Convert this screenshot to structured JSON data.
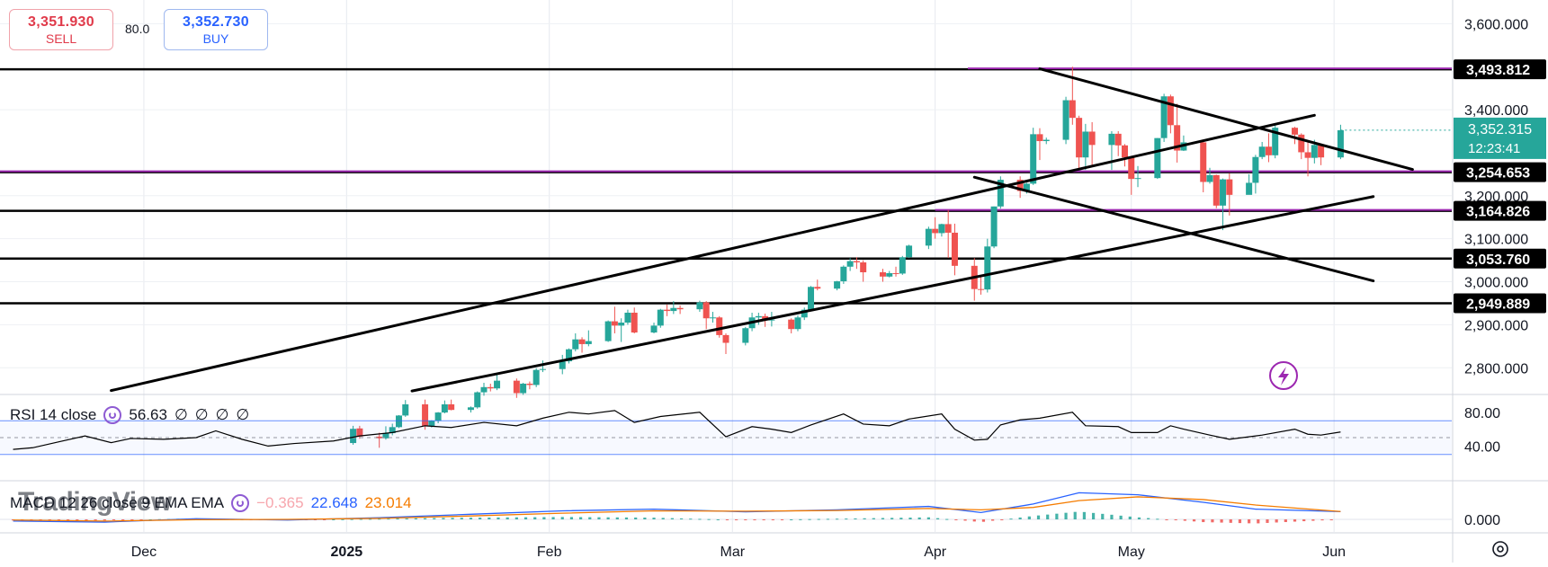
{
  "trade_panel": {
    "sell_price": "3,351.930",
    "sell_label": "SELL",
    "spread": "80.0",
    "buy_price": "3,352.730",
    "buy_label": "BUY"
  },
  "watermark": "TradingView",
  "colors": {
    "up": "#26a69a",
    "down": "#ef5350",
    "hline": "#000000",
    "purple_line": "#9c27b0",
    "rsi_line": "#000000",
    "rsi_band": "#2962ff",
    "macd_line": "#2962ff",
    "signal_line": "#f57c00",
    "price_badge": "#26a69a"
  },
  "price_axis_labels": [
    "3,600.000",
    "3,400.000",
    "3,200.000",
    "3,100.000",
    "3,000.000",
    "2,900.000",
    "2,800.000"
  ],
  "level_labels": [
    "3,493.812",
    "3,254.653",
    "3,164.826",
    "3,053.760",
    "2,949.889"
  ],
  "current_price": {
    "value": "3,352.315",
    "countdown": "12:23:41"
  },
  "rsi": {
    "name": "RSI 14 close",
    "value": "56.63",
    "extras": [
      "∅",
      "∅",
      "∅",
      "∅"
    ],
    "axis_labels": [
      "80.00",
      "40.00"
    ]
  },
  "macd": {
    "name": "MACD 12 26 close 9 EMA EMA",
    "histogram": "−0.365",
    "macd": "22.648",
    "signal": "23.014",
    "axis_labels": [
      "0.000"
    ]
  },
  "time_axis_labels": [
    "Dec",
    "2025",
    "Feb",
    "Mar",
    "Apr",
    "May",
    "Jun"
  ],
  "chart_data": {
    "type": "candlestick",
    "title": "",
    "price_range": [
      2740,
      3655
    ],
    "time_range": [
      "2024-11-09",
      "2025-06-19"
    ],
    "grid": true,
    "horizontal_levels": [
      3493.812,
      3254.653,
      3164.826,
      3053.76,
      2949.889
    ],
    "purple_levels": [
      {
        "y": 3493.812,
        "from": "2025-04-06"
      },
      {
        "y": 3254.653,
        "from": "2024-11-09"
      },
      {
        "y": 3164.826,
        "from": "2025-04-01"
      }
    ],
    "trendlines": [
      {
        "from": [
          "2024-11-26",
          2747
        ],
        "to": [
          "2025-05-29",
          3387
        ]
      },
      {
        "from": [
          "2025-01-11",
          2746
        ],
        "to": [
          "2025-06-07",
          3198
        ]
      },
      {
        "from": [
          "2025-04-17",
          3495
        ],
        "to": [
          "2025-06-13",
          3261
        ]
      },
      {
        "from": [
          "2025-04-07",
          3243
        ],
        "to": [
          "2025-06-07",
          3002
        ]
      }
    ],
    "candles": [
      [
        "2025-01-02",
        2625,
        2665,
        2621,
        2658
      ],
      [
        "2025-01-03",
        2659,
        2665,
        2635,
        2640
      ],
      [
        "2025-01-06",
        2640,
        2649,
        2614,
        2636
      ],
      [
        "2025-01-07",
        2636,
        2664,
        2633,
        2648
      ],
      [
        "2025-01-08",
        2648,
        2670,
        2643,
        2662
      ],
      [
        "2025-01-09",
        2662,
        2690,
        2660,
        2689
      ],
      [
        "2025-01-10",
        2689,
        2725,
        2686,
        2715
      ],
      [
        "2025-01-13",
        2715,
        2726,
        2656,
        2664
      ],
      [
        "2025-01-14",
        2664,
        2678,
        2661,
        2677
      ],
      [
        "2025-01-15",
        2677,
        2697,
        2671,
        2696
      ],
      [
        "2025-01-16",
        2696,
        2724,
        2694,
        2715
      ],
      [
        "2025-01-17",
        2715,
        2726,
        2701,
        2702
      ],
      [
        "2025-01-20",
        2702,
        2710,
        2696,
        2708
      ],
      [
        "2025-01-21",
        2708,
        2745,
        2705,
        2743
      ],
      [
        "2025-01-22",
        2743,
        2765,
        2735,
        2755
      ],
      [
        "2025-01-23",
        2755,
        2763,
        2745,
        2752
      ],
      [
        "2025-01-24",
        2752,
        2785,
        2748,
        2770
      ],
      [
        "2025-01-27",
        2770,
        2775,
        2730,
        2741
      ],
      [
        "2025-01-28",
        2741,
        2765,
        2737,
        2763
      ],
      [
        "2025-01-29",
        2763,
        2768,
        2750,
        2760
      ],
      [
        "2025-01-30",
        2760,
        2799,
        2755,
        2795
      ],
      [
        "2025-01-31",
        2795,
        2817,
        2790,
        2797
      ],
      [
        "2025-02-03",
        2797,
        2830,
        2785,
        2815
      ],
      [
        "2025-02-04",
        2815,
        2845,
        2810,
        2843
      ],
      [
        "2025-02-05",
        2843,
        2880,
        2838,
        2866
      ],
      [
        "2025-02-06",
        2866,
        2871,
        2835,
        2855
      ],
      [
        "2025-02-07",
        2855,
        2887,
        2850,
        2862
      ],
      [
        "2025-02-10",
        2862,
        2910,
        2860,
        2908
      ],
      [
        "2025-02-11",
        2908,
        2942,
        2880,
        2898
      ],
      [
        "2025-02-12",
        2898,
        2915,
        2860,
        2905
      ],
      [
        "2025-02-13",
        2905,
        2935,
        2900,
        2928
      ],
      [
        "2025-02-14",
        2928,
        2940,
        2880,
        2882
      ],
      [
        "2025-02-17",
        2882,
        2905,
        2880,
        2898
      ],
      [
        "2025-02-18",
        2898,
        2937,
        2893,
        2935
      ],
      [
        "2025-02-19",
        2935,
        2947,
        2920,
        2932
      ],
      [
        "2025-02-20",
        2932,
        2955,
        2925,
        2939
      ],
      [
        "2025-02-21",
        2939,
        2945,
        2925,
        2936
      ],
      [
        "2025-02-24",
        2936,
        2956,
        2930,
        2952
      ],
      [
        "2025-02-25",
        2952,
        2955,
        2890,
        2915
      ],
      [
        "2025-02-26",
        2915,
        2930,
        2905,
        2917
      ],
      [
        "2025-02-27",
        2917,
        2920,
        2870,
        2876
      ],
      [
        "2025-02-28",
        2876,
        2880,
        2832,
        2858
      ],
      [
        "2025-03-03",
        2858,
        2895,
        2852,
        2892
      ],
      [
        "2025-03-04",
        2892,
        2928,
        2885,
        2917
      ],
      [
        "2025-03-05",
        2917,
        2928,
        2900,
        2920
      ],
      [
        "2025-03-06",
        2920,
        2926,
        2895,
        2910
      ],
      [
        "2025-03-07",
        2910,
        2930,
        2896,
        2912
      ],
      [
        "2025-03-10",
        2912,
        2915,
        2880,
        2890
      ],
      [
        "2025-03-11",
        2890,
        2922,
        2885,
        2917
      ],
      [
        "2025-03-12",
        2917,
        2940,
        2911,
        2935
      ],
      [
        "2025-03-13",
        2935,
        2990,
        2932,
        2988
      ],
      [
        "2025-03-14",
        2988,
        3005,
        2980,
        2984
      ],
      [
        "2025-03-17",
        2984,
        3002,
        2980,
        3001
      ],
      [
        "2025-03-18",
        3001,
        3038,
        2995,
        3035
      ],
      [
        "2025-03-19",
        3035,
        3055,
        3025,
        3048
      ],
      [
        "2025-03-20",
        3048,
        3057,
        3030,
        3045
      ],
      [
        "2025-03-21",
        3045,
        3050,
        3000,
        3022
      ],
      [
        "2025-03-24",
        3022,
        3030,
        3000,
        3012
      ],
      [
        "2025-03-25",
        3012,
        3025,
        3010,
        3020
      ],
      [
        "2025-03-26",
        3020,
        3035,
        3012,
        3019
      ],
      [
        "2025-03-27",
        3019,
        3060,
        3016,
        3057
      ],
      [
        "2025-03-28",
        3057,
        3086,
        3055,
        3084
      ],
      [
        "2025-03-31",
        3084,
        3128,
        3076,
        3123
      ],
      [
        "2025-04-01",
        3123,
        3150,
        3100,
        3113
      ],
      [
        "2025-04-02",
        3113,
        3135,
        3105,
        3134
      ],
      [
        "2025-04-03",
        3134,
        3167,
        3055,
        3114
      ],
      [
        "2025-04-04",
        3114,
        3135,
        3015,
        3037
      ],
      [
        "2025-04-07",
        3037,
        3055,
        2956,
        2983
      ],
      [
        "2025-04-08",
        2983,
        3015,
        2970,
        2982
      ],
      [
        "2025-04-09",
        2982,
        3100,
        2975,
        3082
      ],
      [
        "2025-04-10",
        3082,
        3175,
        3078,
        3175
      ],
      [
        "2025-04-11",
        3175,
        3245,
        3170,
        3237
      ],
      [
        "2025-04-14",
        3237,
        3245,
        3195,
        3211
      ],
      [
        "2025-04-15",
        3211,
        3230,
        3205,
        3228
      ],
      [
        "2025-04-16",
        3228,
        3358,
        3225,
        3343
      ],
      [
        "2025-04-17",
        3343,
        3357,
        3283,
        3327
      ],
      [
        "2025-04-18",
        3327,
        3335,
        3320,
        3330
      ],
      [
        "2025-04-21",
        3330,
        3430,
        3320,
        3422
      ],
      [
        "2025-04-22",
        3422,
        3500,
        3365,
        3381
      ],
      [
        "2025-04-23",
        3381,
        3386,
        3260,
        3289
      ],
      [
        "2025-04-24",
        3289,
        3367,
        3260,
        3349
      ],
      [
        "2025-04-25",
        3349,
        3371,
        3268,
        3318
      ],
      [
        "2025-04-28",
        3318,
        3350,
        3260,
        3344
      ],
      [
        "2025-04-29",
        3344,
        3350,
        3292,
        3317
      ],
      [
        "2025-04-30",
        3317,
        3320,
        3268,
        3289
      ],
      [
        "2025-05-01",
        3289,
        3290,
        3202,
        3239
      ],
      [
        "2025-05-02",
        3239,
        3269,
        3220,
        3241
      ],
      [
        "2025-05-05",
        3241,
        3334,
        3239,
        3334
      ],
      [
        "2025-05-06",
        3334,
        3437,
        3325,
        3431
      ],
      [
        "2025-05-07",
        3431,
        3435,
        3345,
        3364
      ],
      [
        "2025-05-08",
        3364,
        3414,
        3277,
        3305
      ],
      [
        "2025-05-09",
        3305,
        3340,
        3304,
        3324
      ],
      [
        "2025-05-12",
        3324,
        3326,
        3208,
        3232
      ],
      [
        "2025-05-13",
        3232,
        3265,
        3228,
        3248
      ],
      [
        "2025-05-14",
        3248,
        3249,
        3171,
        3177
      ],
      [
        "2025-05-15",
        3177,
        3240,
        3120,
        3238
      ],
      [
        "2025-05-16",
        3238,
        3252,
        3154,
        3202
      ],
      [
        "2025-05-19",
        3202,
        3250,
        3206,
        3230
      ],
      [
        "2025-05-20",
        3230,
        3295,
        3205,
        3290
      ],
      [
        "2025-05-21",
        3290,
        3325,
        3285,
        3314
      ],
      [
        "2025-05-22",
        3314,
        3345,
        3278,
        3294
      ],
      [
        "2025-05-23",
        3294,
        3365,
        3287,
        3358
      ],
      [
        "2025-05-26",
        3358,
        3360,
        3320,
        3342
      ],
      [
        "2025-05-27",
        3342,
        3345,
        3285,
        3301
      ],
      [
        "2025-05-28",
        3301,
        3325,
        3245,
        3288
      ],
      [
        "2025-05-29",
        3288,
        3330,
        3275,
        3318
      ],
      [
        "2025-05-30",
        3318,
        3320,
        3271,
        3289
      ],
      [
        "2025-06-02",
        3289,
        3365,
        3285,
        3352.315
      ]
    ],
    "rsi_series": {
      "range": [
        0,
        100
      ],
      "levels": [
        70,
        50,
        30
      ],
      "values": [
        [
          "2024-11-11",
          36
        ],
        [
          "2024-11-14",
          38
        ],
        [
          "2024-11-18",
          45
        ],
        [
          "2024-11-22",
          52
        ],
        [
          "2024-11-26",
          44
        ],
        [
          "2024-11-29",
          49
        ],
        [
          "2024-12-04",
          48
        ],
        [
          "2024-12-09",
          50
        ],
        [
          "2024-12-12",
          58
        ],
        [
          "2024-12-16",
          48
        ],
        [
          "2024-12-20",
          40
        ],
        [
          "2024-12-24",
          43
        ],
        [
          "2024-12-30",
          46
        ],
        [
          "2025-01-03",
          52
        ],
        [
          "2025-01-08",
          56
        ],
        [
          "2025-01-13",
          64
        ],
        [
          "2025-01-17",
          62
        ],
        [
          "2025-01-22",
          68
        ],
        [
          "2025-01-27",
          64
        ],
        [
          "2025-01-31",
          73
        ],
        [
          "2025-02-04",
          80
        ],
        [
          "2025-02-07",
          78
        ],
        [
          "2025-02-11",
          82
        ],
        [
          "2025-02-14",
          68
        ],
        [
          "2025-02-18",
          75
        ],
        [
          "2025-02-24",
          80
        ],
        [
          "2025-02-28",
          51
        ],
        [
          "2025-03-04",
          63
        ],
        [
          "2025-03-07",
          60
        ],
        [
          "2025-03-10",
          56
        ],
        [
          "2025-03-13",
          65
        ],
        [
          "2025-03-18",
          78
        ],
        [
          "2025-03-21",
          66
        ],
        [
          "2025-03-25",
          64
        ],
        [
          "2025-03-28",
          72
        ],
        [
          "2025-04-02",
          78
        ],
        [
          "2025-04-04",
          60
        ],
        [
          "2025-04-07",
          47
        ],
        [
          "2025-04-09",
          48
        ],
        [
          "2025-04-11",
          65
        ],
        [
          "2025-04-14",
          71
        ],
        [
          "2025-04-17",
          73
        ],
        [
          "2025-04-22",
          80
        ],
        [
          "2025-04-24",
          64
        ],
        [
          "2025-04-29",
          63
        ],
        [
          "2025-05-01",
          56
        ],
        [
          "2025-05-05",
          56
        ],
        [
          "2025-05-07",
          64
        ],
        [
          "2025-05-09",
          60
        ],
        [
          "2025-05-13",
          53
        ],
        [
          "2025-05-16",
          48
        ],
        [
          "2025-05-21",
          53
        ],
        [
          "2025-05-26",
          60
        ],
        [
          "2025-05-28",
          54
        ],
        [
          "2025-05-30",
          53
        ],
        [
          "2025-06-02",
          56.63
        ]
      ]
    },
    "macd_series": {
      "macd": [
        [
          "2024-11-11",
          -5
        ],
        [
          "2024-11-25",
          -8
        ],
        [
          "2024-12-09",
          2
        ],
        [
          "2024-12-23",
          -2
        ],
        [
          "2025-01-06",
          5
        ],
        [
          "2025-01-20",
          15
        ],
        [
          "2025-02-03",
          25
        ],
        [
          "2025-02-17",
          30
        ],
        [
          "2025-03-03",
          22
        ],
        [
          "2025-03-17",
          28
        ],
        [
          "2025-03-31",
          38
        ],
        [
          "2025-04-08",
          20
        ],
        [
          "2025-04-16",
          45
        ],
        [
          "2025-04-23",
          78
        ],
        [
          "2025-05-02",
          72
        ],
        [
          "2025-05-12",
          50
        ],
        [
          "2025-05-20",
          30
        ],
        [
          "2025-06-02",
          22.648
        ]
      ],
      "signal": [
        [
          "2024-11-11",
          -2
        ],
        [
          "2024-11-25",
          -5
        ],
        [
          "2024-12-09",
          -1
        ],
        [
          "2024-12-23",
          0
        ],
        [
          "2025-01-06",
          3
        ],
        [
          "2025-01-20",
          10
        ],
        [
          "2025-02-03",
          18
        ],
        [
          "2025-02-17",
          25
        ],
        [
          "2025-03-03",
          24
        ],
        [
          "2025-03-17",
          26
        ],
        [
          "2025-03-31",
          32
        ],
        [
          "2025-04-08",
          28
        ],
        [
          "2025-04-16",
          35
        ],
        [
          "2025-04-23",
          55
        ],
        [
          "2025-05-02",
          66
        ],
        [
          "2025-05-12",
          58
        ],
        [
          "2025-05-20",
          42
        ],
        [
          "2025-06-02",
          23.014
        ]
      ]
    }
  }
}
